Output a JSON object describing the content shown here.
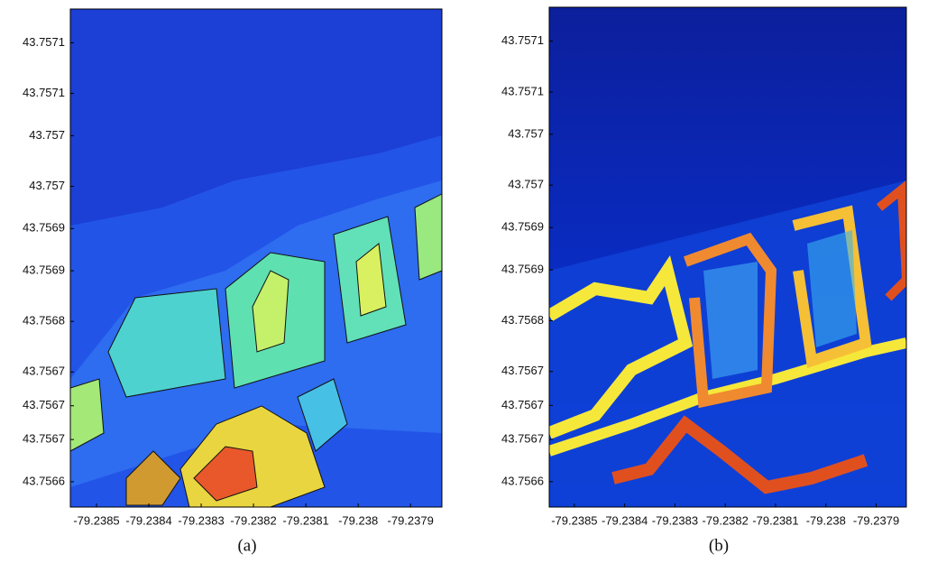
{
  "chart_data": [
    {
      "type": "contour",
      "caption": "(a)",
      "xlim": [
        -79.23855,
        -79.23784
      ],
      "xticks": [
        -79.2385,
        -79.2384,
        -79.2383,
        -79.2382,
        -79.2381,
        -79.238,
        -79.2379
      ],
      "ylim": [
        43.75658,
        43.75717
      ],
      "yticks": [
        {
          "value": 43.75713,
          "label": "43.7571"
        },
        {
          "value": 43.75707,
          "label": "43.7571"
        },
        {
          "value": 43.75702,
          "label": "43.757"
        },
        {
          "value": 43.75696,
          "label": "43.757"
        },
        {
          "value": 43.75691,
          "label": "43.7569"
        },
        {
          "value": 43.75686,
          "label": "43.7569"
        },
        {
          "value": 43.7568,
          "label": "43.7568"
        },
        {
          "value": 43.75674,
          "label": "43.7567"
        },
        {
          "value": 43.7567,
          "label": "43.7567"
        },
        {
          "value": 43.75666,
          "label": "43.7567"
        },
        {
          "value": 43.75661,
          "label": "43.7566"
        }
      ]
    },
    {
      "type": "heatmap",
      "caption": "(b)",
      "xlim": [
        -79.23855,
        -79.23784
      ],
      "xticks": [
        -79.2385,
        -79.2384,
        -79.2383,
        -79.2382,
        -79.2381,
        -79.238,
        -79.2379
      ],
      "ylim": [
        43.75658,
        43.75717
      ],
      "yticks": [
        {
          "value": 43.75713,
          "label": "43.7571"
        },
        {
          "value": 43.75707,
          "label": "43.7571"
        },
        {
          "value": 43.75702,
          "label": "43.757"
        },
        {
          "value": 43.75696,
          "label": "43.757"
        },
        {
          "value": 43.75691,
          "label": "43.7569"
        },
        {
          "value": 43.75686,
          "label": "43.7569"
        },
        {
          "value": 43.7568,
          "label": "43.7568"
        },
        {
          "value": 43.75674,
          "label": "43.7567"
        },
        {
          "value": 43.7567,
          "label": "43.7567"
        },
        {
          "value": 43.75666,
          "label": "43.7567"
        },
        {
          "value": 43.75661,
          "label": "43.7566"
        }
      ]
    }
  ]
}
